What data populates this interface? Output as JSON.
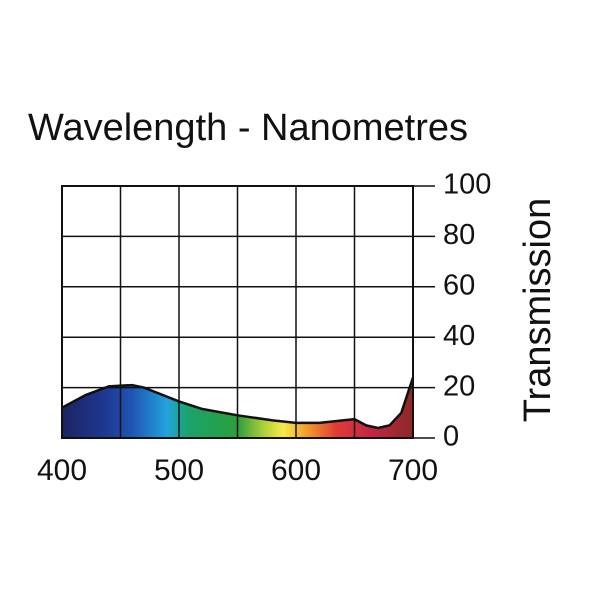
{
  "chart_data": {
    "type": "area",
    "title": "Wavelength - Nanometres",
    "y_label": "Transmission",
    "x": [
      400,
      420,
      440,
      460,
      470,
      500,
      520,
      550,
      580,
      600,
      620,
      640,
      650,
      660,
      670,
      680,
      690,
      700
    ],
    "values": [
      12,
      17,
      20.5,
      21,
      20,
      14.5,
      11.5,
      9,
      7,
      6,
      6,
      7,
      7.5,
      5,
      4,
      5,
      10,
      24
    ],
    "xlim": [
      400,
      700
    ],
    "xticks": [
      400,
      500,
      600,
      700
    ],
    "xgrid": [
      400,
      450,
      500,
      550,
      600,
      650,
      700
    ],
    "ylim": [
      0,
      100
    ],
    "yticks": [
      0,
      20,
      40,
      60,
      80,
      100
    ],
    "grid": true
  }
}
